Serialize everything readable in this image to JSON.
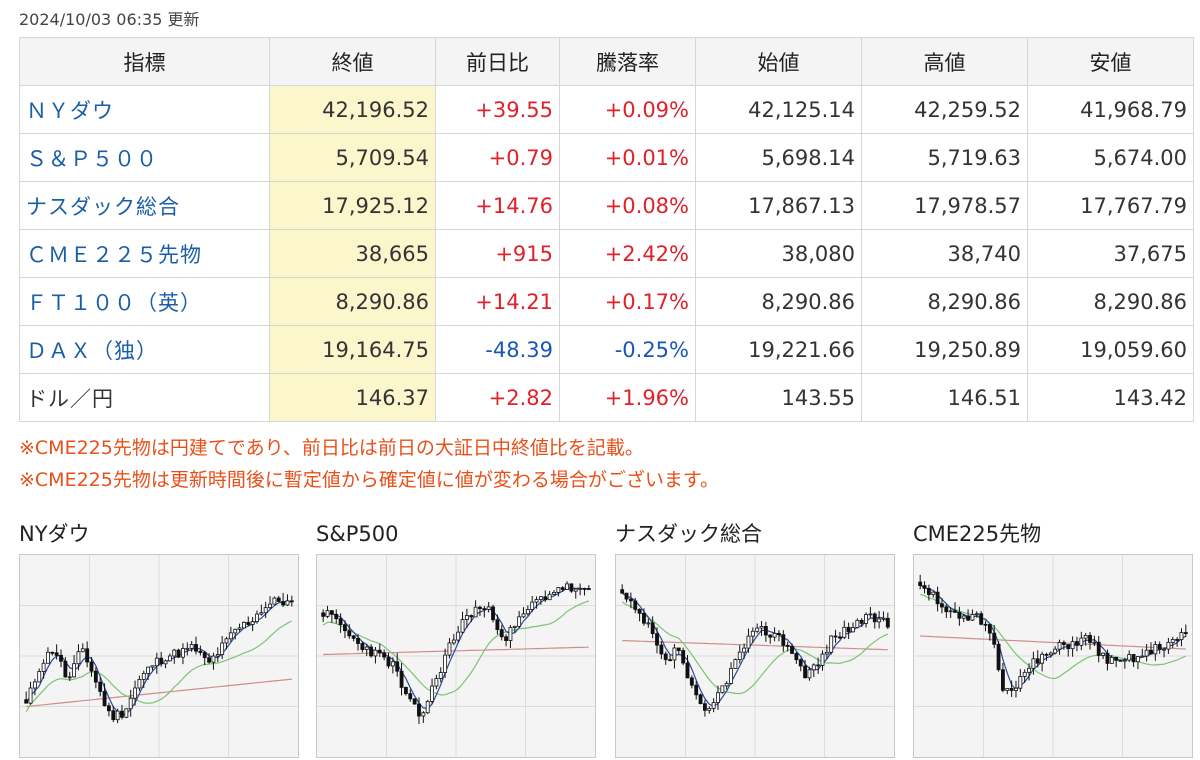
{
  "updated": "2024/10/03 06:35 更新",
  "table": {
    "headers": [
      "指標",
      "終値",
      "前日比",
      "騰落率",
      "始値",
      "高値",
      "安値"
    ],
    "rows": [
      {
        "name": "ＮＹダウ",
        "close": "42,196.52",
        "change": "+39.55",
        "rate": "+0.09%",
        "open": "42,125.14",
        "high": "42,259.52",
        "low": "41,968.79",
        "dir": "up",
        "link": true
      },
      {
        "name": "Ｓ＆Ｐ５００",
        "close": "5,709.54",
        "change": "+0.79",
        "rate": "+0.01%",
        "open": "5,698.14",
        "high": "5,719.63",
        "low": "5,674.00",
        "dir": "up",
        "link": true
      },
      {
        "name": "ナスダック総合",
        "close": "17,925.12",
        "change": "+14.76",
        "rate": "+0.08%",
        "open": "17,867.13",
        "high": "17,978.57",
        "low": "17,767.79",
        "dir": "up",
        "link": true
      },
      {
        "name": "ＣＭＥ２２５先物",
        "close": "38,665",
        "change": "+915",
        "rate": "+2.42%",
        "open": "38,080",
        "high": "38,740",
        "low": "37,675",
        "dir": "up",
        "link": true
      },
      {
        "name": "ＦＴ１００（英）",
        "close": "8,290.86",
        "change": "+14.21",
        "rate": "+0.17%",
        "open": "8,290.86",
        "high": "8,290.86",
        "low": "8,290.86",
        "dir": "up",
        "link": true
      },
      {
        "name": "ＤＡＸ（独）",
        "close": "19,164.75",
        "change": "-48.39",
        "rate": "-0.25%",
        "open": "19,221.66",
        "high": "19,250.89",
        "low": "19,059.60",
        "dir": "down",
        "link": true
      },
      {
        "name": "ドル／円",
        "close": "146.37",
        "change": "+2.82",
        "rate": "+1.96%",
        "open": "143.55",
        "high": "146.51",
        "low": "143.42",
        "dir": "up",
        "link": false
      }
    ]
  },
  "notes": [
    "※CME225先物は円建てであり、前日比は前日の大証日中終値比を記載。",
    "※CME225先物は更新時間後に暫定値から確定値に値が変わる場合がございます。"
  ],
  "colors": {
    "up": "#e0202a",
    "down": "#1a56b8",
    "link": "#1a5ea8",
    "note": "#e8501a",
    "close_bg": "#fcf6cc",
    "ma_short": "#2b4a9c",
    "ma_mid": "#7cc474",
    "ma_long": "#d08c8c"
  },
  "mini_charts": [
    {
      "title": "NYダウ",
      "seed": 11,
      "pattern": [
        0.22,
        0.45,
        0.55,
        0.35,
        0.55,
        0.35,
        0.15,
        0.18,
        0.35,
        0.45,
        0.5,
        0.52,
        0.55,
        0.45,
        0.55,
        0.65,
        0.7,
        0.78,
        0.82,
        0.8
      ]
    },
    {
      "title": "S&P500",
      "seed": 23,
      "pattern": [
        0.75,
        0.7,
        0.6,
        0.55,
        0.5,
        0.45,
        0.25,
        0.15,
        0.35,
        0.55,
        0.7,
        0.78,
        0.75,
        0.6,
        0.7,
        0.8,
        0.85,
        0.9,
        0.88,
        0.86
      ]
    },
    {
      "title": "ナスダック総合",
      "seed": 37,
      "pattern": [
        0.85,
        0.75,
        0.65,
        0.45,
        0.55,
        0.3,
        0.15,
        0.3,
        0.45,
        0.6,
        0.65,
        0.62,
        0.55,
        0.4,
        0.45,
        0.6,
        0.65,
        0.7,
        0.72,
        0.68
      ]
    },
    {
      "title": "CME225先物",
      "seed": 51,
      "pattern": [
        0.92,
        0.85,
        0.75,
        0.7,
        0.72,
        0.65,
        0.3,
        0.35,
        0.45,
        0.5,
        0.55,
        0.58,
        0.6,
        0.5,
        0.45,
        0.48,
        0.5,
        0.55,
        0.58,
        0.62
      ]
    }
  ]
}
